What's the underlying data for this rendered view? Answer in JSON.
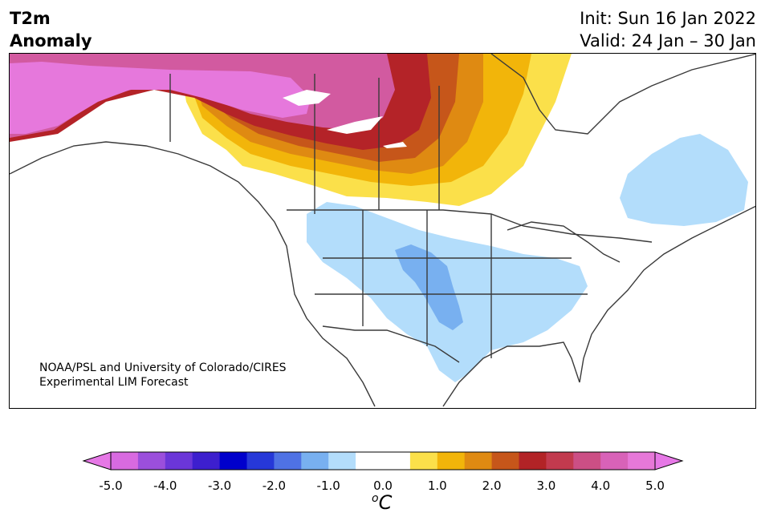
{
  "title": {
    "line1": "T2m",
    "line2": "Anomaly"
  },
  "header_right": {
    "init": "Init: Sun 16 Jan 2022",
    "valid": "Valid: 24 Jan – 30 Jan"
  },
  "credit": {
    "line1": "NOAA/PSL and University of Colorado/CIRES",
    "line2": "Experimental LIM Forecast"
  },
  "colorbar": {
    "unit_prefix": "o",
    "unit": "C",
    "ticks": [
      "-5.0",
      "-4.0",
      "-3.0",
      "-2.0",
      "-1.0",
      "0.0",
      "1.0",
      "2.0",
      "3.0",
      "4.0",
      "5.0"
    ],
    "colors": [
      "#d86ae0",
      "#9b4fdc",
      "#6b36d8",
      "#3d1fce",
      "#0000cc",
      "#2638d8",
      "#4f72e4",
      "#78b0f0",
      "#b3ddfb",
      "#ffffff",
      "#ffffff",
      "#fbe04a",
      "#f2b50a",
      "#df8a12",
      "#c6561a",
      "#b22326",
      "#c23a4e",
      "#cc4f85",
      "#d862b8",
      "#e678d8"
    ],
    "under_color": "#e678e6",
    "over_color": "#e678e6"
  },
  "regions": {
    "warm_magenta": "#e678dc",
    "warm_pink": "#d25aa0",
    "warm_red": "#b42328",
    "warm_darkorange": "#c6561a",
    "warm_orange": "#df8a12",
    "warm_gold": "#f2b50a",
    "warm_yellow": "#fbe04a",
    "cool_light": "#b3ddfb",
    "cool_mid": "#78b0f0"
  }
}
